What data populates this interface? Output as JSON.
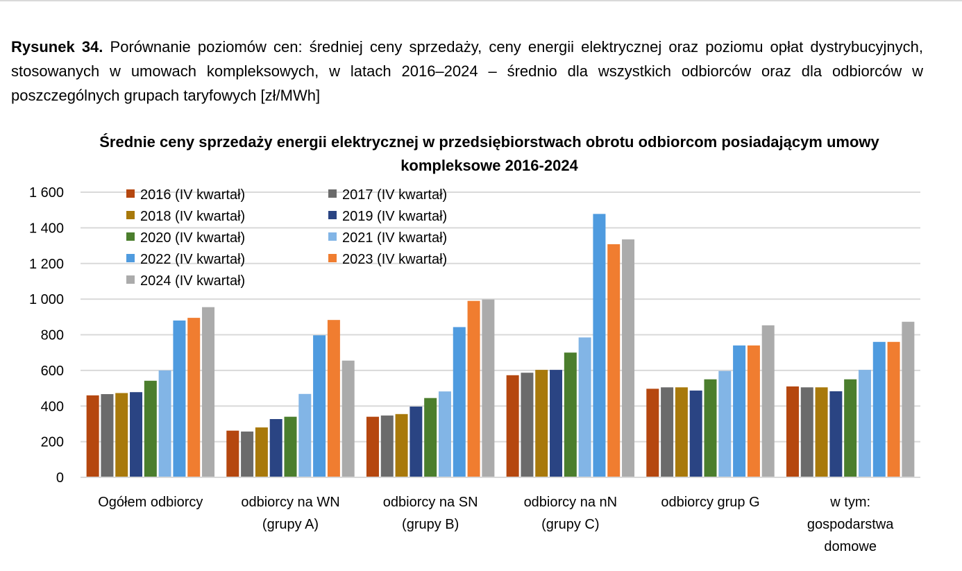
{
  "caption": {
    "label": "Rysunek 34.",
    "text": "Porównanie poziomów cen: średniej ceny sprzedaży, ceny energii elektrycznej oraz poziomu opłat dystrybucyjnych, stosowanych w umowach kompleksowych, w latach 2016–2024 – średnio dla wszystkich odbiorców oraz dla odbiorców w poszczególnych grupach taryfowych [zł/MWh]"
  },
  "chart_data": {
    "type": "bar",
    "title": "Średnie ceny sprzedaży energii elektrycznej w przedsiębiorstwach obrotu odbiorcom posiadającym umowy kompleksowe 2016-2024",
    "categories": [
      [
        "Ogółem odbiorcy"
      ],
      [
        "odbiorcy na WN",
        "(grupy A)"
      ],
      [
        "odbiorcy na SN",
        "(grupy B)"
      ],
      [
        "odbiorcy na nN",
        "(grupy C)"
      ],
      [
        "odbiorcy grup G"
      ],
      [
        "w tym:",
        "gospodarstwa",
        "domowe"
      ]
    ],
    "ylim": [
      0,
      1600
    ],
    "yticks": [
      0,
      200,
      400,
      600,
      800,
      1000,
      1200,
      1400,
      1600
    ],
    "ytick_labels": [
      "0",
      "200",
      "400",
      "600",
      "800",
      "1 000",
      "1 200",
      "1 400",
      "1 600"
    ],
    "grid": true,
    "legend_position": "top-left",
    "series": [
      {
        "name": "2016 (IV kwartał)",
        "color": "#b5470f",
        "values": [
          460,
          262,
          340,
          573,
          497,
          510
        ]
      },
      {
        "name": "2017 (IV kwartał)",
        "color": "#6b6b6b",
        "values": [
          467,
          257,
          347,
          587,
          505,
          505
        ]
      },
      {
        "name": "2018 (IV kwartał)",
        "color": "#a8790b",
        "values": [
          473,
          280,
          355,
          603,
          505,
          505
        ]
      },
      {
        "name": "2019 (IV kwartał)",
        "color": "#2a4483",
        "values": [
          478,
          327,
          397,
          603,
          487,
          483
        ]
      },
      {
        "name": "2020 (IV kwartał)",
        "color": "#4b7e2d",
        "values": [
          542,
          340,
          445,
          700,
          550,
          550
        ]
      },
      {
        "name": "2021 (IV kwartał)",
        "color": "#82b5e6",
        "values": [
          600,
          468,
          482,
          785,
          597,
          603
        ]
      },
      {
        "name": "2022 (IV kwartał)",
        "color": "#4f9bdf",
        "values": [
          880,
          797,
          843,
          1478,
          740,
          760
        ]
      },
      {
        "name": "2023 (IV kwartał)",
        "color": "#f07d30",
        "values": [
          895,
          883,
          990,
          1308,
          740,
          760
        ]
      },
      {
        "name": "2024 (IV kwartał)",
        "color": "#ababab",
        "values": [
          955,
          655,
          998,
          1335,
          853,
          873
        ]
      }
    ]
  }
}
